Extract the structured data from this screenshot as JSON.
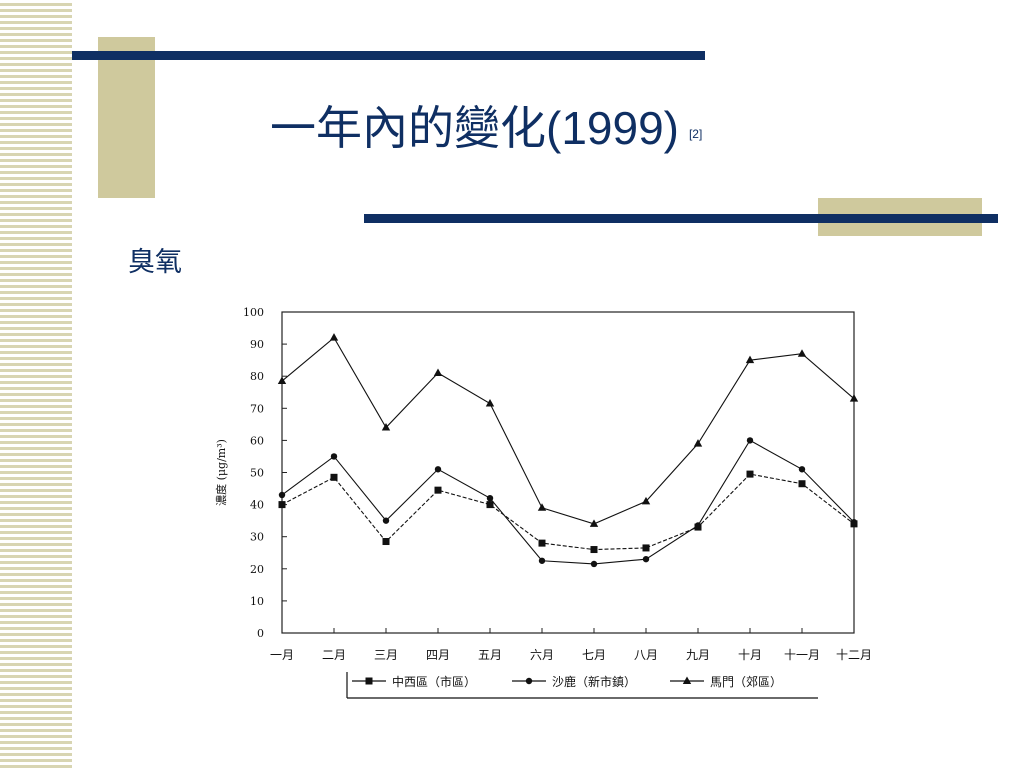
{
  "slide": {
    "title_cjk": "一年內的變化",
    "title_year": "(1999)",
    "title_ref": "[2]",
    "subtitle": "臭氧"
  },
  "colors": {
    "navy": "#0f2f63",
    "olive": "#cfc99d",
    "stripe": "#d8d5b2"
  },
  "chart_data": {
    "type": "line",
    "categories": [
      "一月",
      "二月",
      "三月",
      "四月",
      "五月",
      "六月",
      "七月",
      "八月",
      "九月",
      "十月",
      "十一月",
      "十二月"
    ],
    "ylabel": "濃度 (μg/m³)",
    "ylim": [
      0,
      100
    ],
    "yticks": [
      0,
      10,
      20,
      30,
      40,
      50,
      60,
      70,
      80,
      90,
      100
    ],
    "grid": false,
    "legend_position": "bottom",
    "series": [
      {
        "name": "中西區（市區）",
        "marker": "square",
        "line": "dashed",
        "values": [
          40,
          48.5,
          28.5,
          44.5,
          40,
          28,
          26,
          26.5,
          33,
          49.5,
          46.5,
          34
        ]
      },
      {
        "name": "沙鹿（新市鎮）",
        "marker": "circle",
        "line": "solid",
        "values": [
          43,
          55,
          35,
          51,
          42,
          22.5,
          21.5,
          23,
          33.5,
          60,
          51,
          34.5
        ]
      },
      {
        "name": "馬門（郊區）",
        "marker": "triangle",
        "line": "solid",
        "values": [
          78.5,
          92,
          64,
          81,
          71.5,
          39,
          34,
          41,
          59,
          85,
          87,
          73
        ]
      }
    ]
  }
}
